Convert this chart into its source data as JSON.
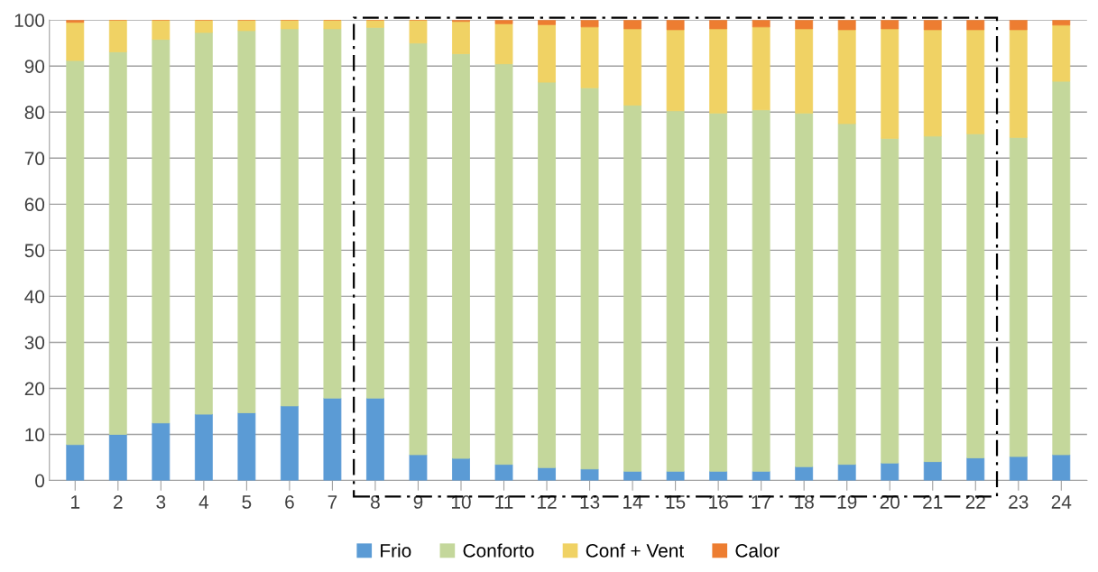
{
  "chart_data": {
    "type": "bar",
    "stacked": true,
    "categories": [
      "1",
      "2",
      "3",
      "4",
      "5",
      "6",
      "7",
      "8",
      "9",
      "10",
      "11",
      "12",
      "13",
      "14",
      "15",
      "16",
      "17",
      "18",
      "19",
      "20",
      "21",
      "22",
      "23",
      "24"
    ],
    "series": [
      {
        "name": "Frio",
        "color": "#5b9bd5",
        "values": [
          7.8,
          10,
          12.5,
          14.4,
          14.7,
          16.2,
          17.9,
          17.9,
          5.6,
          4.8,
          3.5,
          2.8,
          2.5,
          2.0,
          2.0,
          2.0,
          2.0,
          3.0,
          3.5,
          3.8,
          4.1,
          4.9,
          5.2,
          5.6
        ]
      },
      {
        "name": "Conforto",
        "color": "#c4d79b",
        "values": [
          83.4,
          83.1,
          83.3,
          82.9,
          83.0,
          81.9,
          80.2,
          80.5,
          89.4,
          87.9,
          87.0,
          83.7,
          82.8,
          79.5,
          78.3,
          77.8,
          78.5,
          76.8,
          74.0,
          70.5,
          70.7,
          70.4,
          69.3,
          81.1
        ]
      },
      {
        "name": "Conf + Vent",
        "color": "#f0d264",
        "values": [
          8.3,
          6.9,
          4.2,
          2.7,
          2.3,
          1.9,
          1.9,
          1.6,
          5.0,
          7.0,
          8.7,
          12.5,
          13.2,
          16.6,
          17.6,
          18.3,
          18.0,
          18.3,
          20.4,
          23.8,
          23.1,
          22.6,
          23.4,
          12.2
        ]
      },
      {
        "name": "Calor",
        "color": "#ed7d31",
        "values": [
          0.5,
          0,
          0,
          0,
          0,
          0,
          0,
          0,
          0,
          0.3,
          0.8,
          1.0,
          1.5,
          1.9,
          2.1,
          1.9,
          1.5,
          1.9,
          2.1,
          1.9,
          2.1,
          2.1,
          2.1,
          1.1
        ]
      }
    ],
    "ylim": [
      0,
      100
    ],
    "yticks": [
      0,
      10,
      20,
      30,
      40,
      50,
      60,
      70,
      80,
      90,
      100
    ],
    "grid": "y",
    "legend": "bottom"
  }
}
